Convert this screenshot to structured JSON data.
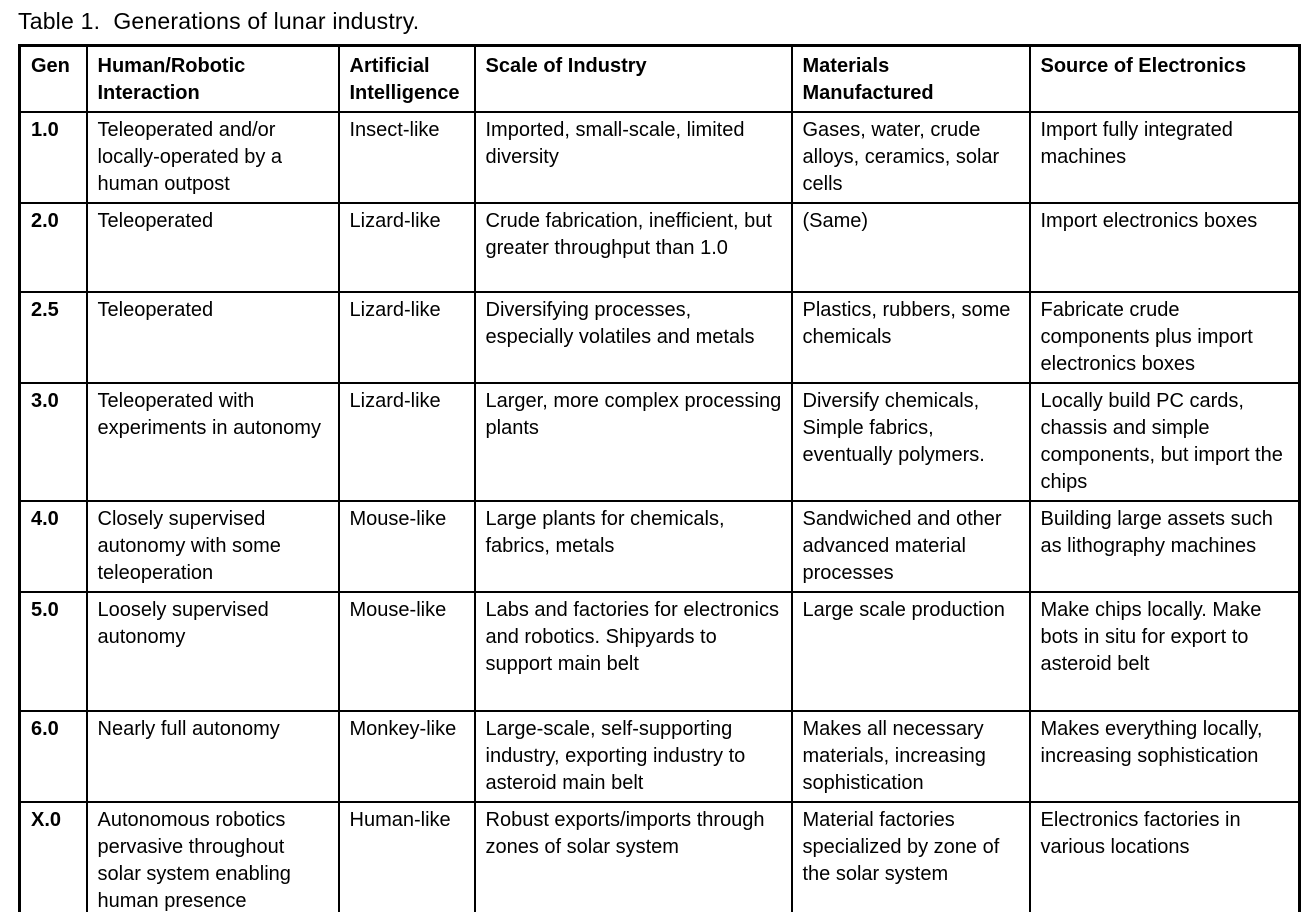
{
  "caption": "Table 1.  Generations of lunar industry.",
  "table": {
    "columns": [
      "Gen",
      "Human/Robotic Interaction",
      "Artificial Intelligence",
      "Scale of Industry",
      "Materials Manufactured",
      "Source of Electronics"
    ],
    "rows": [
      [
        "1.0",
        "Teleoperated and/or locally-operated by a human outpost",
        "Insect-like",
        "Imported, small-scale, limited diversity",
        "Gases, water, crude alloys, ceramics, solar cells",
        "Import fully integrated machines"
      ],
      [
        "2.0",
        "Teleoperated",
        "Lizard-like",
        "Crude fabrication, inefficient, but greater throughput than 1.0",
        "(Same)",
        "Import electronics boxes"
      ],
      [
        "2.5",
        "Teleoperated",
        "Lizard-like",
        "Diversifying processes, especially volatiles and metals",
        "Plastics, rubbers, some chemicals",
        "Fabricate crude components plus import electronics boxes"
      ],
      [
        "3.0",
        "Teleoperated with experiments in autonomy",
        "Lizard-like",
        "Larger, more complex processing plants",
        "Diversify chemicals, Simple fabrics, eventually polymers.",
        "Locally build PC cards, chassis and simple components, but import the chips"
      ],
      [
        "4.0",
        "Closely supervised autonomy with some teleoperation",
        "Mouse-like",
        "Large plants for chemicals, fabrics, metals",
        "Sandwiched and other advanced material processes",
        "Building large assets such as lithography machines"
      ],
      [
        "5.0",
        "Loosely supervised autonomy",
        "Mouse-like",
        "Labs and factories for electronics and robotics. Shipyards to support main belt",
        "Large scale production",
        "Make chips locally. Make bots in situ for export to asteroid belt"
      ],
      [
        "6.0",
        "Nearly full autonomy",
        "Monkey-like",
        "Large-scale, self-supporting industry, exporting industry to asteroid main belt",
        "Makes all necessary materials, increasing sophistication",
        "Makes everything locally, increasing sophistication"
      ],
      [
        "X.0",
        "Autonomous robotics pervasive throughout solar system enabling human presence",
        "Human-like",
        "Robust exports/imports through zones of solar system",
        "Material factories specialized by zone of the solar system",
        "Electronics factories in various locations"
      ]
    ]
  }
}
